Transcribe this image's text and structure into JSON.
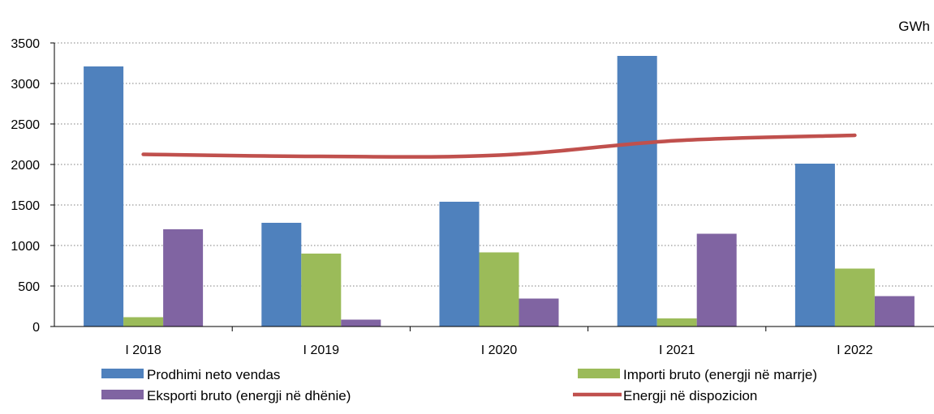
{
  "chart_data": {
    "type": "bar",
    "unit": "GWh",
    "categories": [
      "I 2018",
      "I 2019",
      "I 2020",
      "I 2021",
      "I 2022"
    ],
    "series": [
      {
        "name": "Prodhimi neto vendas",
        "type": "bar",
        "color": "#4F81BD",
        "values": [
          3210,
          1280,
          1540,
          3340,
          2010
        ]
      },
      {
        "name": "Importi bruto (energji në marrje)",
        "type": "bar",
        "color": "#9BBB59",
        "values": [
          115,
          900,
          915,
          100,
          715
        ]
      },
      {
        "name": "Eksporti bruto (energji në dhënie)",
        "type": "bar",
        "color": "#8064A2",
        "values": [
          1200,
          85,
          345,
          1145,
          375
        ]
      },
      {
        "name": "Energji në dispozicion",
        "type": "line",
        "color": "#C0504D",
        "values": [
          2125,
          2100,
          2115,
          2295,
          2360
        ]
      }
    ],
    "ylim": [
      0,
      3500
    ],
    "yticks": [
      0,
      500,
      1000,
      1500,
      2000,
      2500,
      3000,
      3500
    ],
    "grid": "horizontal-dotted",
    "legend": "bottom"
  }
}
